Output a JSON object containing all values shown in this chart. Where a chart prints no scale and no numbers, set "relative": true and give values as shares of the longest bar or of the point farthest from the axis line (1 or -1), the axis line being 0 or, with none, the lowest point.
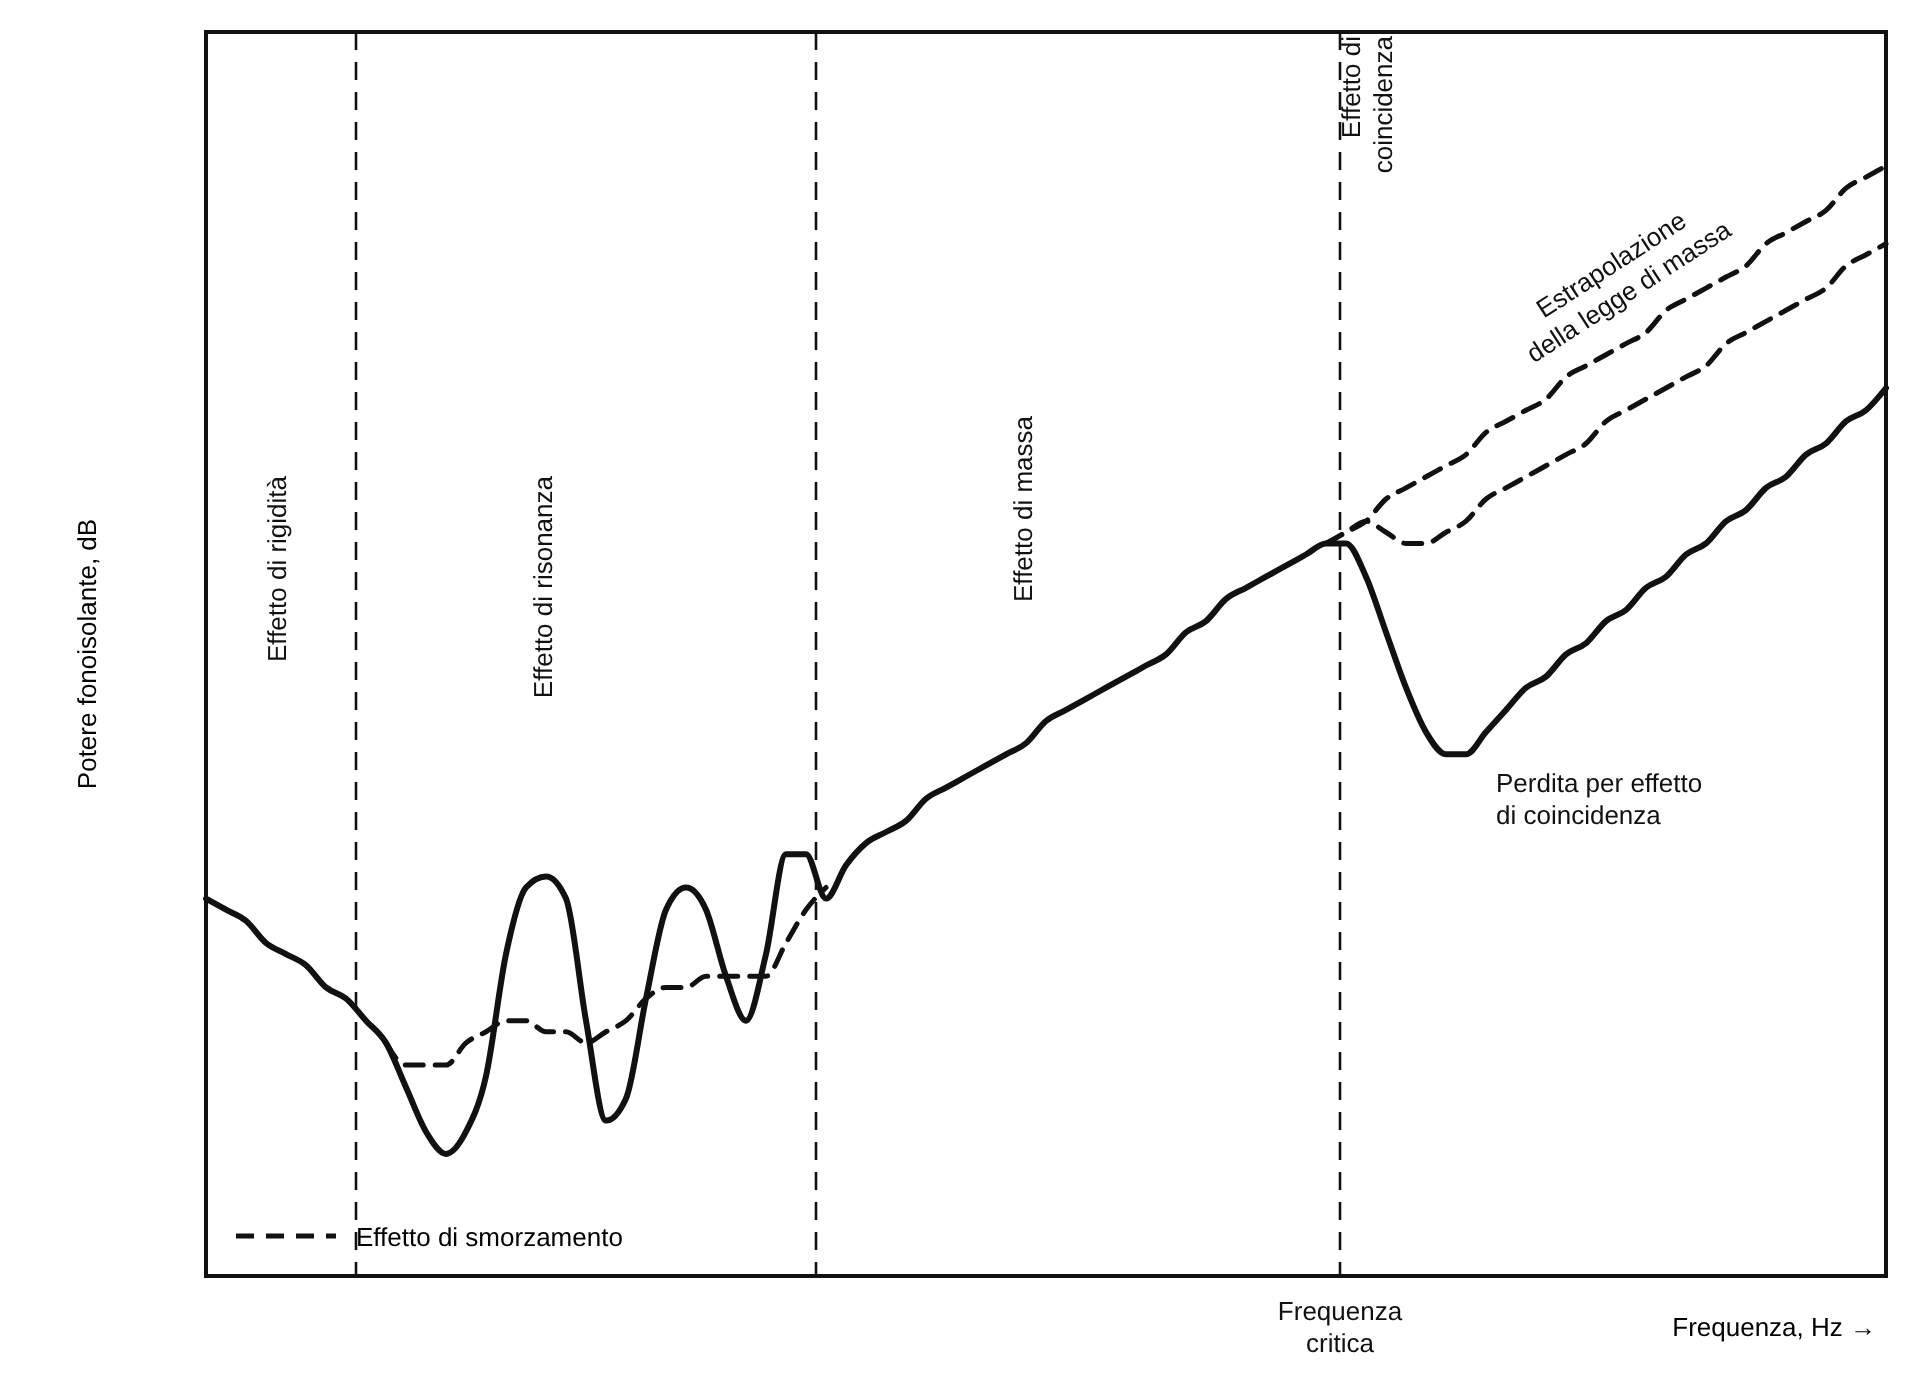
{
  "chart_data": {
    "type": "line",
    "relative": true,
    "xlabel": "Frequenza, Hz →",
    "ylabel": "Potere fonoisolante, dB",
    "legend": "bottom left",
    "grid": false,
    "categories": [
      null,
      null,
      null,
      null,
      null,
      null,
      null,
      null,
      null,
      null,
      null,
      null,
      null,
      null,
      null,
      null,
      null,
      null,
      null,
      null,
      null,
      null,
      null,
      null,
      null,
      null,
      null,
      null,
      null,
      null,
      null,
      null,
      null,
      null,
      null,
      null,
      null,
      null,
      null,
      null,
      null,
      null,
      null,
      null,
      null,
      null,
      null,
      null,
      null,
      null,
      null,
      null,
      null,
      null,
      null,
      null,
      null,
      null,
      null,
      null,
      null,
      null,
      null,
      null,
      null,
      null,
      null,
      null,
      null,
      null,
      null,
      null,
      null,
      null,
      null,
      null,
      null,
      null,
      null,
      null,
      null,
      null,
      null,
      null,
      null
    ],
    "series": [
      {
        "color": "#111111",
        "line_style": "solid",
        "values": [
          0.34,
          0.33,
          0.32,
          0.3,
          0.29,
          0.28,
          0.26,
          0.25,
          0.23,
          0.21,
          0.17,
          0.13,
          0.11,
          0.13,
          0.18,
          0.29,
          0.35,
          0.36,
          0.34,
          0.23,
          0.14,
          0.16,
          0.25,
          0.33,
          0.35,
          0.33,
          0.27,
          0.23,
          0.29,
          0.38,
          0.38,
          0.34,
          0.37,
          0.39,
          0.4,
          0.41,
          0.43,
          0.44,
          0.45,
          0.46,
          0.47,
          0.48,
          0.5,
          0.51,
          0.52,
          0.53,
          0.54,
          0.55,
          0.56,
          0.58,
          0.59,
          0.61,
          0.62,
          0.63,
          0.64,
          0.65,
          0.66,
          0.66,
          0.63,
          0.58,
          0.53,
          0.49,
          0.47,
          0.47,
          0.49,
          0.51,
          0.53,
          0.54,
          0.56,
          0.57,
          0.59,
          0.6,
          0.62,
          0.63,
          0.65,
          0.66,
          0.68,
          0.69,
          0.71,
          0.72,
          0.74,
          0.75,
          0.77,
          0.78,
          0.8
        ]
      },
      {
        "name": "Effetto di smorzamento",
        "color": "#111111",
        "line_style": "dashed",
        "values": [
          null,
          null,
          null,
          null,
          null,
          null,
          null,
          null,
          null,
          0.21,
          0.19,
          0.19,
          0.19,
          0.21,
          0.22,
          0.23,
          0.23,
          0.22,
          0.22,
          0.21,
          0.22,
          0.23,
          0.25,
          0.26,
          0.26,
          0.27,
          0.27,
          0.27,
          0.27,
          0.3,
          0.33,
          0.35,
          null,
          null,
          null,
          null,
          null,
          null,
          null,
          null,
          null,
          null,
          null,
          null,
          null,
          null,
          null,
          null,
          null,
          null,
          null,
          null,
          null,
          null,
          null,
          null,
          0.66,
          0.67,
          0.68,
          0.67,
          0.66,
          0.66,
          0.67,
          0.68,
          0.7,
          0.71,
          0.72,
          0.73,
          0.74,
          0.75,
          0.77,
          0.78,
          0.79,
          0.8,
          0.81,
          0.82,
          0.84,
          0.85,
          0.86,
          0.87,
          0.88,
          0.89,
          0.91,
          0.92,
          0.93
        ]
      },
      {
        "color": "#111111",
        "line_style": "dashed",
        "values": [
          null,
          null,
          null,
          null,
          null,
          null,
          null,
          null,
          null,
          null,
          null,
          null,
          null,
          null,
          null,
          null,
          null,
          null,
          null,
          null,
          null,
          null,
          null,
          null,
          null,
          null,
          null,
          null,
          null,
          null,
          null,
          null,
          null,
          null,
          null,
          null,
          null,
          null,
          null,
          null,
          null,
          null,
          null,
          null,
          null,
          null,
          null,
          null,
          null,
          null,
          null,
          null,
          null,
          null,
          null,
          null,
          0.66,
          0.67,
          0.68,
          0.7,
          0.71,
          0.72,
          0.73,
          0.74,
          0.76,
          0.77,
          0.78,
          0.79,
          0.81,
          0.82,
          0.83,
          0.84,
          0.85,
          0.87,
          0.88,
          0.89,
          0.9,
          0.91,
          0.93,
          0.94,
          0.95,
          0.96,
          0.98,
          0.99,
          1.0
        ]
      }
    ],
    "annotations": [
      "Effetto di rigidità",
      "Effetto di risonanza",
      "Effetto di massa",
      "Effetto di coincidenza",
      "Estrapolazione della legge di massa",
      "Perdita per effetto di coincidenza",
      "Frequenza critica"
    ]
  }
}
